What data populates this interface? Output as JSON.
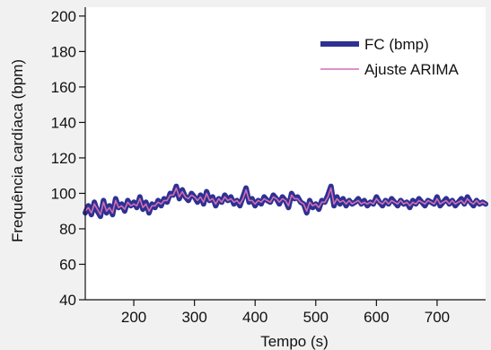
{
  "chart_data": {
    "type": "line",
    "xlabel": "Tempo (s)",
    "ylabel": "Frequência cardíaca (bpm)",
    "xlim": [
      120,
      780
    ],
    "ylim": [
      40,
      205
    ],
    "x_ticks": [
      200,
      300,
      400,
      500,
      600,
      700
    ],
    "y_ticks": [
      40,
      60,
      80,
      100,
      120,
      140,
      160,
      180,
      200
    ],
    "grid": false,
    "legend_position": "top-right",
    "series": [
      {
        "name": "FC (bmp)",
        "color": "#2e3192",
        "x": [
          120,
          125,
          130,
          135,
          140,
          145,
          150,
          155,
          160,
          165,
          170,
          175,
          180,
          185,
          190,
          195,
          200,
          205,
          210,
          215,
          220,
          225,
          230,
          235,
          240,
          245,
          250,
          255,
          260,
          265,
          270,
          275,
          280,
          285,
          290,
          295,
          300,
          305,
          310,
          315,
          320,
          325,
          330,
          335,
          340,
          345,
          350,
          355,
          360,
          365,
          370,
          375,
          380,
          385,
          390,
          395,
          400,
          405,
          410,
          415,
          420,
          425,
          430,
          435,
          440,
          445,
          450,
          455,
          460,
          465,
          470,
          475,
          480,
          485,
          490,
          495,
          500,
          505,
          510,
          515,
          520,
          525,
          530,
          535,
          540,
          545,
          550,
          555,
          560,
          565,
          570,
          575,
          580,
          585,
          590,
          595,
          600,
          605,
          610,
          615,
          620,
          625,
          630,
          635,
          640,
          645,
          650,
          655,
          660,
          665,
          670,
          675,
          680,
          685,
          690,
          695,
          700,
          705,
          710,
          715,
          720,
          725,
          730,
          735,
          740,
          745,
          750,
          755,
          760,
          765,
          770,
          775,
          780
        ],
        "values": [
          89,
          93,
          88,
          95,
          90,
          87,
          96,
          89,
          93,
          88,
          97,
          92,
          94,
          90,
          96,
          93,
          95,
          92,
          98,
          91,
          95,
          89,
          94,
          92,
          96,
          93,
          97,
          95,
          100,
          99,
          104,
          97,
          102,
          98,
          96,
          100,
          98,
          95,
          99,
          94,
          101,
          96,
          98,
          93,
          97,
          95,
          99,
          96,
          98,
          94,
          96,
          93,
          98,
          103,
          95,
          97,
          93,
          96,
          94,
          98,
          96,
          95,
          99,
          97,
          94,
          98,
          96,
          92,
          100,
          97,
          98,
          95,
          94,
          89,
          96,
          92,
          94,
          91,
          96,
          95,
          99,
          104,
          93,
          98,
          94,
          97,
          93,
          96,
          94,
          95,
          97,
          94,
          96,
          93,
          95,
          94,
          98,
          95,
          93,
          96,
          94,
          97,
          95,
          93,
          96,
          94,
          95,
          92,
          96,
          94,
          97,
          95,
          93,
          96,
          95,
          94,
          98,
          93,
          95,
          97,
          94,
          96,
          93,
          95,
          97,
          94,
          98,
          95,
          93,
          96,
          94,
          95,
          94
        ]
      },
      {
        "name": "Ajuste ARIMA",
        "color": "#d36db3",
        "x": [
          120,
          125,
          130,
          135,
          140,
          145,
          150,
          155,
          160,
          165,
          170,
          175,
          180,
          185,
          190,
          195,
          200,
          205,
          210,
          215,
          220,
          225,
          230,
          235,
          240,
          245,
          250,
          255,
          260,
          265,
          270,
          275,
          280,
          285,
          290,
          295,
          300,
          305,
          310,
          315,
          320,
          325,
          330,
          335,
          340,
          345,
          350,
          355,
          360,
          365,
          370,
          375,
          380,
          385,
          390,
          395,
          400,
          405,
          410,
          415,
          420,
          425,
          430,
          435,
          440,
          445,
          450,
          455,
          460,
          465,
          470,
          475,
          480,
          485,
          490,
          495,
          500,
          505,
          510,
          515,
          520,
          525,
          530,
          535,
          540,
          545,
          550,
          555,
          560,
          565,
          570,
          575,
          580,
          585,
          590,
          595,
          600,
          605,
          610,
          615,
          620,
          625,
          630,
          635,
          640,
          645,
          650,
          655,
          660,
          665,
          670,
          675,
          680,
          685,
          690,
          695,
          700,
          705,
          710,
          715,
          720,
          725,
          730,
          735,
          740,
          745,
          750,
          755,
          760,
          765,
          770,
          775,
          780
        ],
        "values": [
          90,
          92,
          89,
          94,
          91,
          88,
          95,
          90,
          92,
          89,
          96,
          92,
          93,
          91,
          95,
          93,
          94,
          93,
          97,
          92,
          94,
          90,
          93,
          93,
          95,
          94,
          96,
          96,
          99,
          99,
          103,
          98,
          101,
          98,
          97,
          99,
          98,
          96,
          98,
          95,
          100,
          96,
          97,
          94,
          97,
          95,
          98,
          96,
          97,
          95,
          96,
          94,
          97,
          102,
          96,
          96,
          94,
          96,
          95,
          97,
          96,
          95,
          98,
          97,
          95,
          97,
          96,
          93,
          99,
          97,
          97,
          95,
          94,
          90,
          95,
          93,
          94,
          92,
          95,
          95,
          98,
          103,
          94,
          97,
          95,
          96,
          94,
          96,
          94,
          95,
          96,
          94,
          95,
          94,
          95,
          94,
          97,
          95,
          94,
          96,
          94,
          96,
          95,
          94,
          96,
          94,
          95,
          93,
          95,
          94,
          96,
          95,
          94,
          96,
          95,
          94,
          97,
          94,
          95,
          96,
          94,
          96,
          94,
          95,
          96,
          94,
          97,
          95,
          94,
          96,
          94,
          95,
          94
        ]
      }
    ]
  }
}
